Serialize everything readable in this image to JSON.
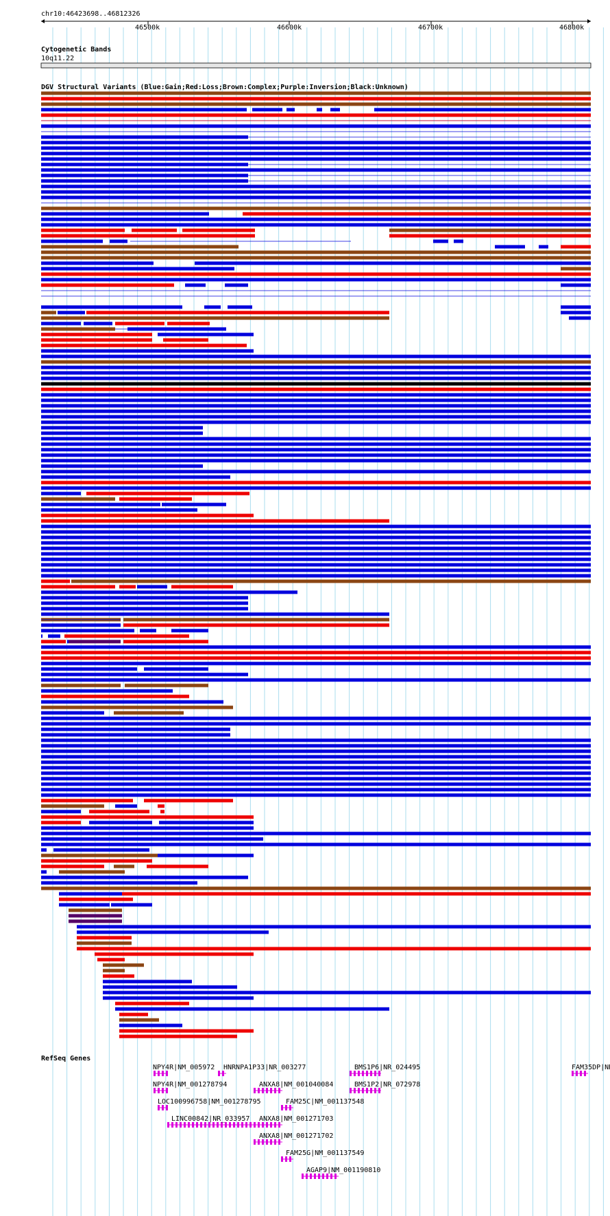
{
  "region": "chr10:46423698..46812326",
  "ruler_ticks": [
    "46500k",
    "46600k",
    "46700k",
    "46800k"
  ],
  "cytoband": {
    "title": "Cytogenetic Bands",
    "band": "10q11.22"
  },
  "dgv": {
    "title": "DGV Structural Variants (Blue:Gain;Red:Loss;Brown:Complex;Purple:Inversion;Black:Unknown)"
  },
  "refseq": {
    "title": "RefSeq Genes",
    "genes": [
      "NPY4R|NM_005972",
      "HNRNPA1P33|NR_003277",
      "BMS1P6|NR_024495",
      "FAM35DP|NR",
      "NPY4R|NM_001278794",
      "ANXA8|NM_001040084",
      "BMS1P2|NR_072978",
      "LOC100996758|NM_001278795",
      "FAM25C|NM_001137548",
      "LINC00842|NR_033957",
      "ANXA8|NM_001271703",
      "ANXA8|NM_001271702",
      "FAM25G|NM_001137549",
      "AGAP9|NM_001190810"
    ]
  },
  "colors": {
    "gain": "#0000dd",
    "loss": "#ee0000",
    "complex": "#8b4513",
    "inversion": "#550066",
    "unknown": "#000000",
    "gene": "#dd00dd",
    "grid": "#aaddee"
  }
}
